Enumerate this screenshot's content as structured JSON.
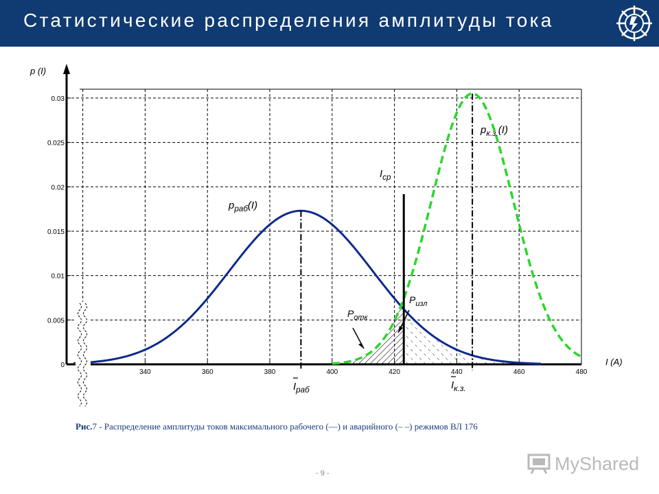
{
  "slide": {
    "title": "Статистические распределения амплитуды тока",
    "caption_fig": "Рис.",
    "caption_text": "7 - Распределение амплитуды токов максимального рабочего (—) и аварийного (– –) режимов ВЛ 176",
    "page_number": "- 9 -",
    "watermark": "MyShared"
  },
  "colors": {
    "header": "#0f3a72",
    "working_curve": "#0d2a8c",
    "fault_curve": "#2bd62b",
    "grid": "#000000"
  },
  "chart_data": {
    "type": "line",
    "ylabel": "p (I)",
    "xlabel": "I (A)",
    "xlim": [
      317,
      480
    ],
    "ylim": [
      0,
      0.031
    ],
    "x_ticks": [
      320,
      340,
      360,
      380,
      400,
      420,
      440,
      460,
      480
    ],
    "y_ticks": [
      0,
      0.005,
      0.01,
      0.015,
      0.02,
      0.025,
      0.03
    ],
    "y_tick_labels": [
      "0",
      "0.005",
      "0.01",
      "0.015",
      "0.02",
      "0.025",
      "0.03"
    ],
    "grid": true,
    "series": [
      {
        "name": "p_раб(I)",
        "style": "solid",
        "mean": 390,
        "peak": 0.0173,
        "points": [
          [
            317,
            0.0001
          ],
          [
            330,
            0.0004
          ],
          [
            340,
            0.0013
          ],
          [
            350,
            0.0034
          ],
          [
            360,
            0.0071
          ],
          [
            370,
            0.0117
          ],
          [
            380,
            0.0156
          ],
          [
            390,
            0.0173
          ],
          [
            400,
            0.0156
          ],
          [
            410,
            0.0117
          ],
          [
            420,
            0.0071
          ],
          [
            430,
            0.0034
          ],
          [
            440,
            0.0013
          ],
          [
            450,
            0.0004
          ],
          [
            460,
            0.0001
          ],
          [
            467,
            3e-05
          ]
        ]
      },
      {
        "name": "p_к.з.(I)",
        "style": "dashed",
        "mean": 445,
        "peak": 0.0305,
        "points": [
          [
            400,
            4e-05
          ],
          [
            410,
            0.0006
          ],
          [
            415,
            0.0017
          ],
          [
            420,
            0.0043
          ],
          [
            425,
            0.0089
          ],
          [
            430,
            0.0153
          ],
          [
            435,
            0.0222
          ],
          [
            440,
            0.0278
          ],
          [
            445,
            0.0305
          ],
          [
            450,
            0.0278
          ],
          [
            455,
            0.0222
          ],
          [
            460,
            0.0153
          ],
          [
            465,
            0.0089
          ],
          [
            470,
            0.0043
          ],
          [
            475,
            0.0017
          ],
          [
            480,
            0.0003
          ]
        ]
      }
    ],
    "annotations": {
      "threshold_label": "I_ср",
      "threshold_x": 423,
      "mean_working_label": "Ī_раб",
      "mean_fault_label": "Ī_к.з.",
      "p_otk_label": "P_отк",
      "p_izl_label": "P_изл",
      "p_rab_label": "p_раб(I)",
      "p_kz_label": "p_к.з.(I)"
    }
  }
}
